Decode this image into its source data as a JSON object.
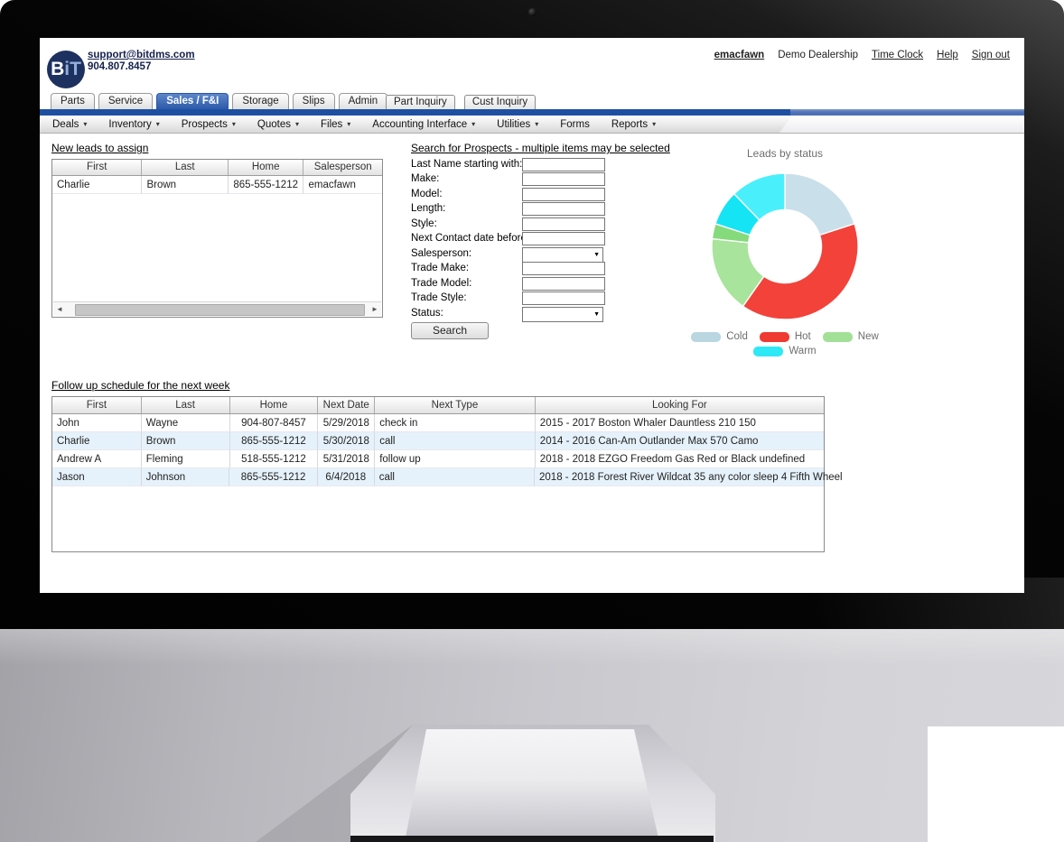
{
  "header": {
    "logo_text": "BiT",
    "email": "support@bitdms.com",
    "phone": "904.807.8457",
    "links": {
      "user": "emacfawn",
      "dealership": "Demo Dealership",
      "time_clock": "Time Clock",
      "help": "Help",
      "sign_out": "Sign out"
    }
  },
  "tabs": [
    {
      "label": "Parts",
      "active": false
    },
    {
      "label": "Service",
      "active": false
    },
    {
      "label": "Sales / F&I",
      "active": true
    },
    {
      "label": "Storage",
      "active": false
    },
    {
      "label": "Slips",
      "active": false
    },
    {
      "label": "Admin",
      "active": false
    }
  ],
  "inquiry_buttons": [
    {
      "label": "Part Inquiry"
    },
    {
      "label": "Cust Inquiry"
    }
  ],
  "menu_items": [
    {
      "label": "Deals",
      "dropdown": true
    },
    {
      "label": "Inventory",
      "dropdown": true
    },
    {
      "label": "Prospects",
      "dropdown": true
    },
    {
      "label": "Quotes",
      "dropdown": true
    },
    {
      "label": "Files",
      "dropdown": true
    },
    {
      "label": "Accounting Interface",
      "dropdown": true
    },
    {
      "label": "Utilities",
      "dropdown": true
    },
    {
      "label": "Forms",
      "dropdown": false
    },
    {
      "label": "Reports",
      "dropdown": true
    }
  ],
  "icons": {
    "menu_arrow": "▾",
    "select_arrow": "▼",
    "scroll_left": "◄",
    "scroll_right": "►"
  },
  "new_leads": {
    "heading": "New leads to assign",
    "columns": [
      "First",
      "Last",
      "Home",
      "Salesperson"
    ],
    "rows": [
      [
        "Charlie",
        "Brown",
        "865-555-1212",
        "emacfawn"
      ]
    ]
  },
  "search_form": {
    "heading": "Search for Prospects - multiple items may be selected",
    "fields": [
      {
        "label": "Last Name starting with:",
        "type": "text",
        "value": ""
      },
      {
        "label": "Make:",
        "type": "text",
        "value": ""
      },
      {
        "label": "Model:",
        "type": "text",
        "value": ""
      },
      {
        "label": "Length:",
        "type": "text",
        "value": ""
      },
      {
        "label": "Style:",
        "type": "text",
        "value": ""
      },
      {
        "label": "Next Contact date before:",
        "type": "text",
        "value": ""
      },
      {
        "label": "Salesperson:",
        "type": "select",
        "value": ""
      },
      {
        "label": "Trade Make:",
        "type": "text",
        "value": ""
      },
      {
        "label": "Trade Model:",
        "type": "text",
        "value": ""
      },
      {
        "label": "Trade Style:",
        "type": "text",
        "value": ""
      },
      {
        "label": "Status:",
        "type": "select",
        "value": ""
      }
    ],
    "button_label": "Search"
  },
  "chart_data": {
    "type": "donut",
    "title": "Leads by status",
    "unit": "percent of leads",
    "inner_radius_ratio": 0.5,
    "slices": [
      {
        "label": "Cold",
        "value": 20,
        "color": "#c9dfe9"
      },
      {
        "label": "Hot",
        "value": 39.7,
        "color": "#f2423a"
      },
      {
        "label": "New",
        "value": 20.3,
        "color": "#a6e39b"
      },
      {
        "label": "Warm",
        "value": 20,
        "color": "#3feefb"
      }
    ],
    "render_segments": [
      {
        "label": "Cold",
        "start": 0,
        "end": 72,
        "color": "#c9dfe9"
      },
      {
        "label": "Hot",
        "start": 72,
        "end": 215,
        "color": "#f2423a"
      },
      {
        "label": "New",
        "start": 215,
        "end": 276,
        "color": "#a8e49c"
      },
      {
        "label": "New",
        "start": 276,
        "end": 288,
        "color": "#85db7b"
      },
      {
        "label": "Warm",
        "start": 288,
        "end": 316,
        "color": "#15e4f4"
      },
      {
        "label": "Warm",
        "start": 316,
        "end": 360,
        "color": "#4aeffc"
      }
    ],
    "legend": [
      {
        "label": "Cold",
        "color": "#b9d6e1"
      },
      {
        "label": "Hot",
        "color": "#ee3a31"
      },
      {
        "label": "New",
        "color": "#a3e097"
      },
      {
        "label": "Warm",
        "color": "#2ee8f6"
      }
    ],
    "legend_rows": [
      [
        "Cold",
        "Hot",
        "New"
      ],
      [
        "Warm"
      ]
    ]
  },
  "followup": {
    "heading": "Follow up schedule for the next week",
    "columns": [
      "First",
      "Last",
      "Home",
      "Next Date",
      "Next Type",
      "Looking For"
    ],
    "rows": [
      [
        "John",
        "Wayne",
        "904-807-8457",
        "5/29/2018",
        "check in",
        "2015 - 2017 Boston Whaler Dauntless 210 150"
      ],
      [
        "Charlie",
        "Brown",
        "865-555-1212",
        "5/30/2018",
        "call",
        "2014 - 2016 Can-Am Outlander Max 570 Camo"
      ],
      [
        "Andrew A",
        "Fleming",
        "518-555-1212",
        "5/31/2018",
        "follow up",
        "2018 - 2018 EZGO Freedom Gas Red or Black undefined"
      ],
      [
        "Jason",
        "Johnson",
        "865-555-1212",
        "6/4/2018",
        "call",
        "2018 - 2018 Forest River Wildcat 35 any color sleep 4 Fifth Wheel"
      ]
    ]
  }
}
